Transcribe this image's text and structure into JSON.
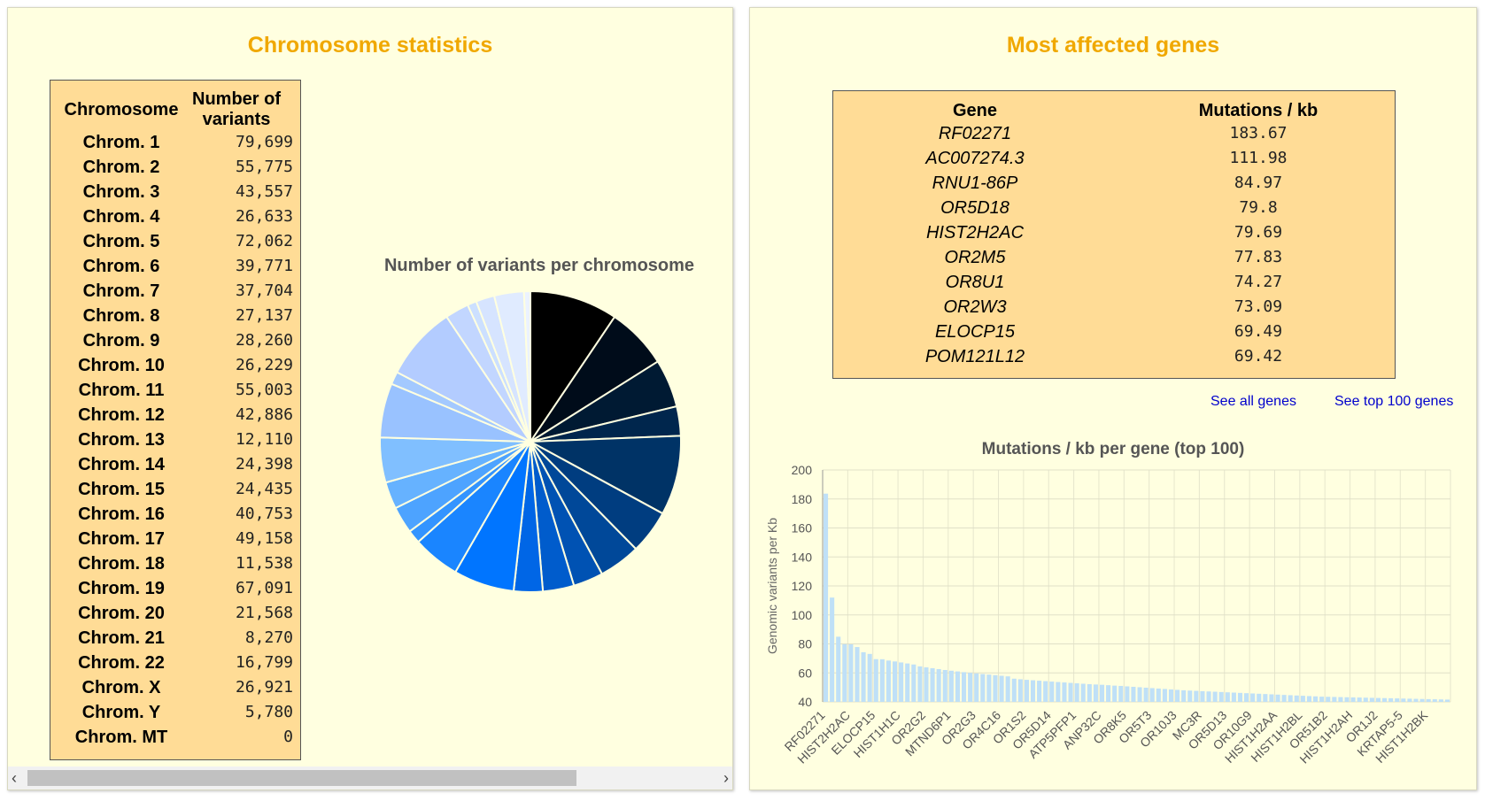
{
  "left": {
    "title": "Chromosome statistics",
    "table": {
      "head_chrom": "Chromosome",
      "head_num": "Number of variants",
      "rows": [
        {
          "name": "Chrom. 1",
          "value": "79,699"
        },
        {
          "name": "Chrom. 2",
          "value": "55,775"
        },
        {
          "name": "Chrom. 3",
          "value": "43,557"
        },
        {
          "name": "Chrom. 4",
          "value": "26,633"
        },
        {
          "name": "Chrom. 5",
          "value": "72,062"
        },
        {
          "name": "Chrom. 6",
          "value": "39,771"
        },
        {
          "name": "Chrom. 7",
          "value": "37,704"
        },
        {
          "name": "Chrom. 8",
          "value": "27,137"
        },
        {
          "name": "Chrom. 9",
          "value": "28,260"
        },
        {
          "name": "Chrom. 10",
          "value": "26,229"
        },
        {
          "name": "Chrom. 11",
          "value": "55,003"
        },
        {
          "name": "Chrom. 12",
          "value": "42,886"
        },
        {
          "name": "Chrom. 13",
          "value": "12,110"
        },
        {
          "name": "Chrom. 14",
          "value": "24,398"
        },
        {
          "name": "Chrom. 15",
          "value": "24,435"
        },
        {
          "name": "Chrom. 16",
          "value": "40,753"
        },
        {
          "name": "Chrom. 17",
          "value": "49,158"
        },
        {
          "name": "Chrom. 18",
          "value": "11,538"
        },
        {
          "name": "Chrom. 19",
          "value": "67,091"
        },
        {
          "name": "Chrom. 20",
          "value": "21,568"
        },
        {
          "name": "Chrom. 21",
          "value": "8,270"
        },
        {
          "name": "Chrom. 22",
          "value": "16,799"
        },
        {
          "name": "Chrom. X",
          "value": "26,921"
        },
        {
          "name": "Chrom. Y",
          "value": "5,780"
        },
        {
          "name": "Chrom. MT",
          "value": "0"
        }
      ]
    }
  },
  "right": {
    "title": "Most affected genes",
    "table": {
      "head_gene": "Gene",
      "head_mut": "Mutations / kb",
      "rows": [
        {
          "name": "RF02271",
          "value": "183.67"
        },
        {
          "name": "AC007274.3",
          "value": "111.98"
        },
        {
          "name": "RNU1-86P",
          "value": "84.97"
        },
        {
          "name": "OR5D18",
          "value": "79.8"
        },
        {
          "name": "HIST2H2AC",
          "value": "79.69"
        },
        {
          "name": "OR2M5",
          "value": "77.83"
        },
        {
          "name": "OR8U1",
          "value": "74.27"
        },
        {
          "name": "OR2W3",
          "value": "73.09"
        },
        {
          "name": "ELOCP15",
          "value": "69.49"
        },
        {
          "name": "POM121L12",
          "value": "69.42"
        }
      ]
    },
    "links": {
      "all": "See all genes",
      "top100": "See top 100 genes"
    }
  },
  "chart_data": [
    {
      "type": "pie",
      "title": "Number of variants per chromosome",
      "categories": [
        "Chrom. 1",
        "Chrom. 2",
        "Chrom. 3",
        "Chrom. 4",
        "Chrom. 5",
        "Chrom. 6",
        "Chrom. 7",
        "Chrom. 8",
        "Chrom. 9",
        "Chrom. 10",
        "Chrom. 11",
        "Chrom. 12",
        "Chrom. 13",
        "Chrom. 14",
        "Chrom. 15",
        "Chrom. 16",
        "Chrom. 17",
        "Chrom. 18",
        "Chrom. 19",
        "Chrom. 20",
        "Chrom. 21",
        "Chrom. 22",
        "Chrom. X",
        "Chrom. Y",
        "Chrom. MT"
      ],
      "values": [
        79699,
        55775,
        43557,
        26633,
        72062,
        39771,
        37704,
        27137,
        28260,
        26229,
        55003,
        42886,
        12110,
        24398,
        24435,
        40753,
        49158,
        11538,
        67091,
        21568,
        8270,
        16799,
        26921,
        5780,
        0
      ],
      "colors": [
        "#000000",
        "#000c1a",
        "#001a33",
        "#00264d",
        "#003366",
        "#003d80",
        "#004899",
        "#0052b3",
        "#005ccc",
        "#0066e6",
        "#0075ff",
        "#1a85ff",
        "#3394ff",
        "#4da3ff",
        "#66b2ff",
        "#80bfff",
        "#99c2ff",
        "#a3c9ff",
        "#b3ccff",
        "#c2d6ff",
        "#cce0ff",
        "#d6e4ff",
        "#e0ebff",
        "#ebf2ff",
        "#f5f9ff"
      ]
    },
    {
      "type": "bar",
      "title": "Mutations / kb per gene (top 100)",
      "ylabel": "Genomic variants per Kb",
      "ylim": [
        40,
        200
      ],
      "yticks": [
        40,
        60,
        80,
        100,
        120,
        140,
        160,
        180,
        200
      ],
      "grid": true,
      "bar_color": "#bfe0f7",
      "xtick_labels": [
        "RF02271",
        "HIST2H2AC",
        "ELOCP15",
        "HIST1H1C",
        "OR2G2",
        "MTND6P1",
        "OR2G3",
        "OR4C16",
        "OR1S2",
        "OR5D14",
        "ATP5PFP1",
        "ANP32C",
        "OR8K5",
        "OR5T3",
        "OR10J3",
        "MC3R",
        "OR5D13",
        "OR10G9",
        "HIST1H2AA",
        "HIST1H2BL",
        "OR51B2",
        "HIST1H2AH",
        "OR1J2",
        "KRTAP5-5",
        "HIST1H2BK"
      ],
      "values": [
        183.67,
        111.98,
        84.97,
        79.8,
        79.69,
        77.83,
        74.27,
        73.09,
        69.49,
        69.42,
        68.5,
        67.9,
        67.2,
        66.5,
        65.8,
        64.5,
        63.8,
        63.2,
        62.6,
        62.0,
        61.5,
        61.0,
        60.5,
        60.0,
        59.6,
        59.2,
        58.8,
        58.4,
        58.0,
        57.6,
        56.0,
        55.6,
        55.2,
        54.9,
        54.6,
        54.3,
        54.0,
        53.7,
        53.4,
        53.1,
        52.8,
        52.5,
        52.2,
        52.0,
        51.8,
        51.5,
        51.2,
        51.0,
        50.7,
        50.4,
        50.1,
        49.8,
        49.5,
        49.2,
        48.9,
        48.6,
        48.3,
        48.0,
        47.8,
        47.6,
        47.4,
        47.2,
        47.0,
        46.8,
        46.6,
        46.4,
        46.2,
        46.0,
        45.8,
        45.6,
        45.4,
        45.2,
        45.0,
        44.8,
        44.6,
        44.4,
        44.2,
        44.0,
        43.8,
        43.6,
        43.5,
        43.4,
        43.3,
        43.2,
        43.1,
        43.0,
        42.9,
        42.8,
        42.7,
        42.6,
        42.5,
        42.4,
        42.3,
        42.2,
        42.1,
        42.0,
        41.9,
        41.8,
        41.7,
        41.6
      ]
    }
  ]
}
